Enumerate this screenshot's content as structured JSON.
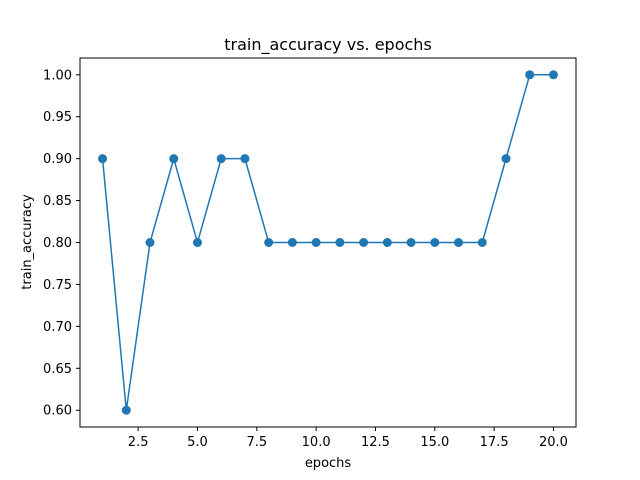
{
  "chart_data": {
    "type": "line",
    "title": "train_accuracy vs. epochs",
    "xlabel": "epochs",
    "ylabel": "train_accuracy",
    "xlim": [
      0.05,
      20.95
    ],
    "ylim": [
      0.58,
      1.02
    ],
    "xticks": [
      2.5,
      5.0,
      7.5,
      10.0,
      12.5,
      15.0,
      17.5,
      20.0
    ],
    "xtick_labels": [
      "2.5",
      "5.0",
      "7.5",
      "10.0",
      "12.5",
      "15.0",
      "17.5",
      "20.0"
    ],
    "yticks": [
      0.6,
      0.65,
      0.7,
      0.75,
      0.8,
      0.85,
      0.9,
      0.95,
      1.0
    ],
    "ytick_labels": [
      "0.60",
      "0.65",
      "0.70",
      "0.75",
      "0.80",
      "0.85",
      "0.90",
      "0.95",
      "1.00"
    ],
    "grid": false,
    "marker": "circle",
    "color": "#1f77b4",
    "series": [
      {
        "x": [
          1,
          2,
          3,
          4,
          5,
          6,
          7,
          8,
          9,
          10,
          11,
          12,
          13,
          14,
          15,
          16,
          17,
          18,
          19,
          20
        ],
        "values": [
          0.9,
          0.6,
          0.8,
          0.9,
          0.8,
          0.9,
          0.9,
          0.8,
          0.8,
          0.8,
          0.8,
          0.8,
          0.8,
          0.8,
          0.8,
          0.8,
          0.8,
          0.9,
          1.0,
          1.0
        ]
      }
    ]
  }
}
